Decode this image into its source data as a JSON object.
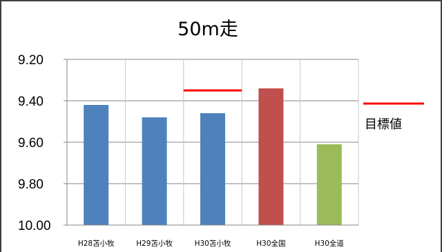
{
  "chart_data": {
    "type": "bar",
    "title": "50m走",
    "categories": [
      "H28苫小牧",
      "H29苫小牧",
      "H30苫小牧",
      "H30全国",
      "H30全道"
    ],
    "values": [
      9.42,
      9.48,
      9.46,
      9.34,
      9.61
    ],
    "bar_colors": [
      "#4f81bd",
      "#4f81bd",
      "#4f81bd",
      "#c0504d",
      "#9bbb59"
    ],
    "ylim": [
      9.2,
      10.0
    ],
    "y_reversed": true,
    "yticks": [
      "9.20",
      "9.40",
      "9.60",
      "9.80",
      "10.00"
    ],
    "ytick_values": [
      9.2,
      9.4,
      9.6,
      9.8,
      10.0
    ],
    "grid": true,
    "target": {
      "label": "目標値",
      "value": 9.35,
      "category": "H30苫小牧",
      "color": "#ff0000"
    },
    "legend": {
      "position": "right",
      "entries": [
        {
          "label": "目標値",
          "color": "#ff0000"
        }
      ]
    }
  }
}
